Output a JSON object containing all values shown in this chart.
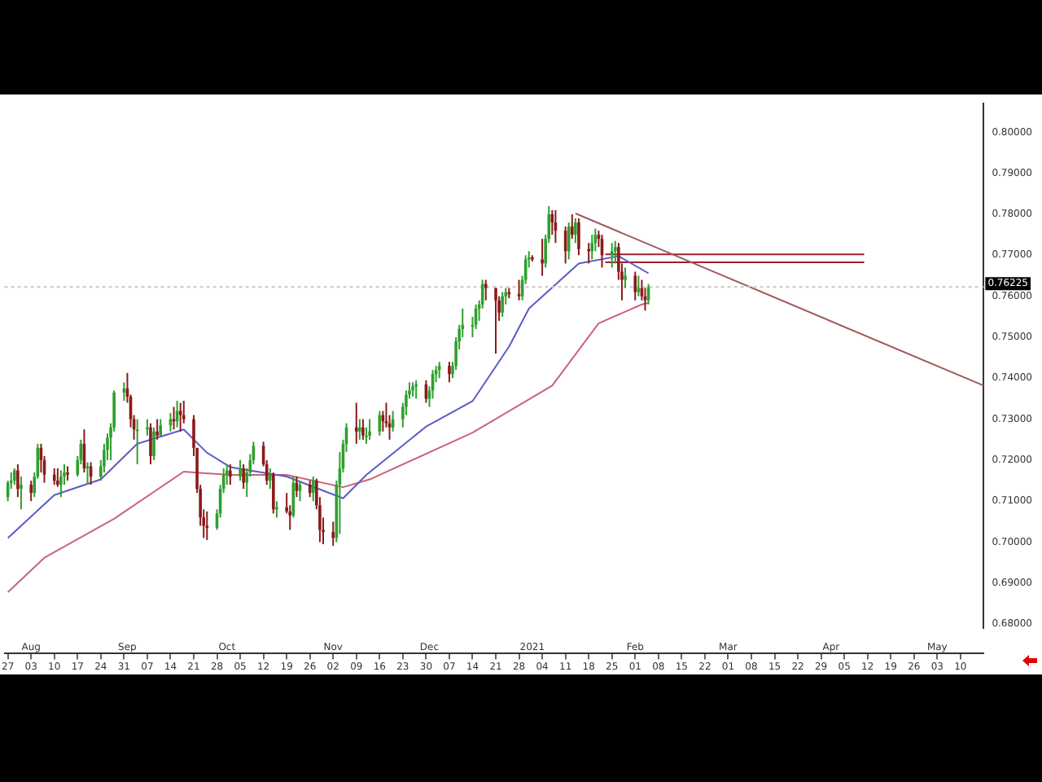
{
  "chart_data": {
    "type": "candlestick",
    "x": [
      "2020-07-27",
      "2020-07-28",
      "2020-07-29",
      "2020-07-30",
      "2020-07-31",
      "2020-08-03",
      "2020-08-04",
      "2020-08-05",
      "2020-08-06",
      "2020-08-07",
      "2020-08-10",
      "2020-08-11",
      "2020-08-12",
      "2020-08-13",
      "2020-08-14",
      "2020-08-17",
      "2020-08-18",
      "2020-08-19",
      "2020-08-20",
      "2020-08-21",
      "2020-08-24",
      "2020-08-25",
      "2020-08-26",
      "2020-08-27",
      "2020-08-28",
      "2020-08-31",
      "2020-09-01",
      "2020-09-02",
      "2020-09-03",
      "2020-09-04",
      "2020-09-07",
      "2020-09-08",
      "2020-09-09",
      "2020-09-10",
      "2020-09-11",
      "2020-09-14",
      "2020-09-15",
      "2020-09-16",
      "2020-09-17",
      "2020-09-18",
      "2020-09-21",
      "2020-09-22",
      "2020-09-23",
      "2020-09-24",
      "2020-09-25",
      "2020-09-28",
      "2020-09-29",
      "2020-09-30",
      "2020-10-01",
      "2020-10-02",
      "2020-10-05",
      "2020-10-06",
      "2020-10-07",
      "2020-10-08",
      "2020-10-09",
      "2020-10-12",
      "2020-10-13",
      "2020-10-14",
      "2020-10-15",
      "2020-10-16",
      "2020-10-19",
      "2020-10-20",
      "2020-10-21",
      "2020-10-22",
      "2020-10-23",
      "2020-10-26",
      "2020-10-27",
      "2020-10-28",
      "2020-10-29",
      "2020-10-30",
      "2020-11-02",
      "2020-11-03",
      "2020-11-04",
      "2020-11-05",
      "2020-11-06",
      "2020-11-09",
      "2020-11-10",
      "2020-11-11",
      "2020-11-12",
      "2020-11-13",
      "2020-11-16",
      "2020-11-17",
      "2020-11-18",
      "2020-11-19",
      "2020-11-20",
      "2020-11-23",
      "2020-11-24",
      "2020-11-25",
      "2020-11-26",
      "2020-11-27",
      "2020-11-30",
      "2020-12-01",
      "2020-12-02",
      "2020-12-03",
      "2020-12-04",
      "2020-12-07",
      "2020-12-08",
      "2020-12-09",
      "2020-12-10",
      "2020-12-11",
      "2020-12-14",
      "2020-12-15",
      "2020-12-16",
      "2020-12-17",
      "2020-12-18",
      "2020-12-21",
      "2020-12-22",
      "2020-12-23",
      "2020-12-24",
      "2020-12-25",
      "2020-12-28",
      "2020-12-29",
      "2020-12-30",
      "2020-12-31",
      "2021-01-01",
      "2021-01-04",
      "2021-01-05",
      "2021-01-06",
      "2021-01-07",
      "2021-01-08",
      "2021-01-11",
      "2021-01-12",
      "2021-01-13",
      "2021-01-14",
      "2021-01-15",
      "2021-01-18",
      "2021-01-19",
      "2021-01-20",
      "2021-01-21",
      "2021-01-22",
      "2021-01-25",
      "2021-01-26",
      "2021-01-27",
      "2021-01-28",
      "2021-01-29",
      "2021-02-01",
      "2021-02-02",
      "2021-02-03",
      "2021-02-04",
      "2021-02-05"
    ],
    "ohlc": [
      [
        0.711,
        0.715,
        0.71,
        0.7145
      ],
      [
        0.7145,
        0.717,
        0.713,
        0.715
      ],
      [
        0.715,
        0.718,
        0.714,
        0.7175
      ],
      [
        0.7175,
        0.719,
        0.711,
        0.713
      ],
      [
        0.713,
        0.716,
        0.708,
        0.714
      ],
      [
        0.714,
        0.715,
        0.71,
        0.712
      ],
      [
        0.712,
        0.717,
        0.711,
        0.716
      ],
      [
        0.716,
        0.724,
        0.7155,
        0.723
      ],
      [
        0.723,
        0.724,
        0.717,
        0.72
      ],
      [
        0.72,
        0.721,
        0.7145,
        0.7165
      ],
      [
        0.7165,
        0.718,
        0.714,
        0.715
      ],
      [
        0.715,
        0.718,
        0.7135,
        0.714
      ],
      [
        0.714,
        0.7175,
        0.711,
        0.716
      ],
      [
        0.716,
        0.719,
        0.714,
        0.717
      ],
      [
        0.717,
        0.7185,
        0.715,
        0.7165
      ],
      [
        0.7165,
        0.721,
        0.716,
        0.72
      ],
      [
        0.72,
        0.725,
        0.719,
        0.724
      ],
      [
        0.724,
        0.7275,
        0.717,
        0.718
      ],
      [
        0.718,
        0.7195,
        0.714,
        0.7185
      ],
      [
        0.7185,
        0.7195,
        0.714,
        0.716
      ],
      [
        0.716,
        0.72,
        0.715,
        0.7185
      ],
      [
        0.7185,
        0.724,
        0.717,
        0.7225
      ],
      [
        0.7225,
        0.7265,
        0.72,
        0.7255
      ],
      [
        0.7255,
        0.729,
        0.72,
        0.728
      ],
      [
        0.728,
        0.737,
        0.727,
        0.7365
      ],
      [
        0.7365,
        0.739,
        0.7345,
        0.7375
      ],
      [
        0.7375,
        0.7413,
        0.734,
        0.7355
      ],
      [
        0.7355,
        0.736,
        0.728,
        0.73
      ],
      [
        0.73,
        0.731,
        0.725,
        0.7275
      ],
      [
        0.7275,
        0.73,
        0.719,
        0.7275
      ],
      [
        0.7275,
        0.73,
        0.726,
        0.728
      ],
      [
        0.728,
        0.729,
        0.719,
        0.721
      ],
      [
        0.721,
        0.728,
        0.72,
        0.727
      ],
      [
        0.727,
        0.73,
        0.725,
        0.726
      ],
      [
        0.726,
        0.73,
        0.726,
        0.7285
      ],
      [
        0.7285,
        0.7315,
        0.727,
        0.73
      ],
      [
        0.73,
        0.733,
        0.7275,
        0.7295
      ],
      [
        0.7295,
        0.7345,
        0.728,
        0.732
      ],
      [
        0.732,
        0.734,
        0.727,
        0.731
      ],
      [
        0.731,
        0.7345,
        0.729,
        0.73
      ],
      [
        0.73,
        0.731,
        0.721,
        0.723
      ],
      [
        0.723,
        0.723,
        0.712,
        0.713
      ],
      [
        0.713,
        0.714,
        0.704,
        0.706
      ],
      [
        0.706,
        0.708,
        0.701,
        0.704
      ],
      [
        0.704,
        0.7075,
        0.7005,
        0.7035
      ],
      [
        0.7035,
        0.708,
        0.703,
        0.707
      ],
      [
        0.707,
        0.714,
        0.706,
        0.713
      ],
      [
        0.713,
        0.718,
        0.712,
        0.7165
      ],
      [
        0.7165,
        0.719,
        0.714,
        0.7175
      ],
      [
        0.7175,
        0.719,
        0.714,
        0.716
      ],
      [
        0.716,
        0.72,
        0.715,
        0.718
      ],
      [
        0.718,
        0.719,
        0.713,
        0.7145
      ],
      [
        0.7145,
        0.718,
        0.711,
        0.717
      ],
      [
        0.717,
        0.7215,
        0.716,
        0.72
      ],
      [
        0.72,
        0.7245,
        0.719,
        0.7235
      ],
      [
        0.7235,
        0.7245,
        0.7185,
        0.719
      ],
      [
        0.719,
        0.72,
        0.714,
        0.715
      ],
      [
        0.715,
        0.718,
        0.713,
        0.7165
      ],
      [
        0.7165,
        0.717,
        0.707,
        0.708
      ],
      [
        0.708,
        0.71,
        0.706,
        0.7085
      ],
      [
        0.7085,
        0.712,
        0.707,
        0.7075
      ],
      [
        0.7075,
        0.709,
        0.703,
        0.7065
      ],
      [
        0.7065,
        0.716,
        0.706,
        0.7145
      ],
      [
        0.7145,
        0.716,
        0.711,
        0.7125
      ],
      [
        0.7125,
        0.715,
        0.71,
        0.714
      ],
      [
        0.714,
        0.715,
        0.711,
        0.712
      ],
      [
        0.712,
        0.716,
        0.71,
        0.715
      ],
      [
        0.715,
        0.7155,
        0.708,
        0.709
      ],
      [
        0.709,
        0.711,
        0.7,
        0.703
      ],
      [
        0.703,
        0.706,
        0.6995,
        0.7025
      ],
      [
        0.7025,
        0.705,
        0.6991,
        0.701
      ],
      [
        0.701,
        0.715,
        0.7,
        0.714
      ],
      [
        0.714,
        0.722,
        0.702,
        0.718
      ],
      [
        0.718,
        0.725,
        0.717,
        0.724
      ],
      [
        0.724,
        0.729,
        0.722,
        0.728
      ],
      [
        0.728,
        0.734,
        0.724,
        0.727
      ],
      [
        0.727,
        0.73,
        0.725,
        0.728
      ],
      [
        0.728,
        0.73,
        0.725,
        0.726
      ],
      [
        0.726,
        0.728,
        0.724,
        0.726
      ],
      [
        0.726,
        0.73,
        0.725,
        0.727
      ],
      [
        0.727,
        0.732,
        0.726,
        0.731
      ],
      [
        0.731,
        0.732,
        0.727,
        0.7295
      ],
      [
        0.7295,
        0.734,
        0.728,
        0.729
      ],
      [
        0.729,
        0.731,
        0.725,
        0.728
      ],
      [
        0.728,
        0.732,
        0.727,
        0.73
      ],
      [
        0.73,
        0.734,
        0.728,
        0.733
      ],
      [
        0.733,
        0.737,
        0.731,
        0.736
      ],
      [
        0.736,
        0.739,
        0.735,
        0.737
      ],
      [
        0.737,
        0.739,
        0.7355,
        0.738
      ],
      [
        0.738,
        0.7395,
        0.735,
        0.7385
      ],
      [
        0.7385,
        0.7395,
        0.734,
        0.735
      ],
      [
        0.735,
        0.738,
        0.733,
        0.737
      ],
      [
        0.737,
        0.742,
        0.735,
        0.741
      ],
      [
        0.741,
        0.743,
        0.739,
        0.742
      ],
      [
        0.742,
        0.744,
        0.74,
        0.743
      ],
      [
        0.743,
        0.744,
        0.739,
        0.741
      ],
      [
        0.741,
        0.744,
        0.74,
        0.743
      ],
      [
        0.743,
        0.75,
        0.742,
        0.749
      ],
      [
        0.749,
        0.753,
        0.747,
        0.752
      ],
      [
        0.752,
        0.757,
        0.75,
        0.753
      ],
      [
        0.753,
        0.755,
        0.75,
        0.753
      ],
      [
        0.753,
        0.758,
        0.752,
        0.757
      ],
      [
        0.757,
        0.759,
        0.754,
        0.758
      ],
      [
        0.758,
        0.764,
        0.757,
        0.763
      ],
      [
        0.763,
        0.764,
        0.759,
        0.762
      ],
      [
        0.762,
        0.762,
        0.746,
        0.759
      ],
      [
        0.759,
        0.76,
        0.754,
        0.756
      ],
      [
        0.756,
        0.761,
        0.755,
        0.76
      ],
      [
        0.76,
        0.762,
        0.758,
        0.761
      ],
      [
        0.761,
        0.762,
        0.7595,
        0.7605
      ],
      [
        0.7605,
        0.764,
        0.759,
        0.76
      ],
      [
        0.76,
        0.765,
        0.759,
        0.764
      ],
      [
        0.764,
        0.77,
        0.763,
        0.769
      ],
      [
        0.769,
        0.771,
        0.767,
        0.7695
      ],
      [
        0.7695,
        0.77,
        0.7685,
        0.769
      ],
      [
        0.769,
        0.774,
        0.765,
        0.768
      ],
      [
        0.768,
        0.775,
        0.767,
        0.774
      ],
      [
        0.774,
        0.782,
        0.773,
        0.78
      ],
      [
        0.78,
        0.781,
        0.775,
        0.778
      ],
      [
        0.778,
        0.781,
        0.773,
        0.776
      ],
      [
        0.776,
        0.777,
        0.768,
        0.771
      ],
      [
        0.771,
        0.778,
        0.769,
        0.777
      ],
      [
        0.777,
        0.78,
        0.774,
        0.775
      ],
      [
        0.775,
        0.779,
        0.773,
        0.778
      ],
      [
        0.778,
        0.779,
        0.77,
        0.7715
      ],
      [
        0.7715,
        0.773,
        0.768,
        0.771
      ],
      [
        0.771,
        0.775,
        0.769,
        0.773
      ],
      [
        0.773,
        0.7765,
        0.771,
        0.775
      ],
      [
        0.775,
        0.776,
        0.772,
        0.774
      ],
      [
        0.774,
        0.775,
        0.767,
        0.77
      ],
      [
        0.77,
        0.773,
        0.767,
        0.771
      ],
      [
        0.771,
        0.7735,
        0.768,
        0.772
      ],
      [
        0.772,
        0.773,
        0.764,
        0.766
      ],
      [
        0.766,
        0.768,
        0.759,
        0.764
      ],
      [
        0.764,
        0.767,
        0.762,
        0.765
      ],
      [
        0.765,
        0.766,
        0.759,
        0.761
      ],
      [
        0.761,
        0.765,
        0.76,
        0.762
      ],
      [
        0.762,
        0.764,
        0.759,
        0.76
      ],
      [
        0.76,
        0.762,
        0.7565,
        0.759
      ],
      [
        0.759,
        0.763,
        0.758,
        0.76225
      ]
    ],
    "colors": [
      "#2ea02e",
      "#2ea02e",
      "#2ea02e",
      "#8b1a1a",
      "#2ea02e",
      "#8b1a1a",
      "#2ea02e",
      "#2ea02e",
      "#8b1a1a",
      "#8b1a1a",
      "#8b1a1a",
      "#8b1a1a",
      "#2ea02e",
      "#2ea02e",
      "#8b1a1a",
      "#2ea02e",
      "#2ea02e",
      "#8b1a1a",
      "#2ea02e",
      "#8b1a1a",
      "#2ea02e",
      "#2ea02e",
      "#2ea02e",
      "#2ea02e",
      "#2ea02e",
      "#2ea02e",
      "#8b1a1a",
      "#8b1a1a",
      "#8b1a1a",
      "#2ea02e",
      "#2ea02e",
      "#8b1a1a",
      "#2ea02e",
      "#8b1a1a",
      "#2ea02e",
      "#2ea02e",
      "#8b1a1a",
      "#2ea02e",
      "#8b1a1a",
      "#8b1a1a",
      "#8b1a1a",
      "#8b1a1a",
      "#8b1a1a",
      "#8b1a1a",
      "#8b1a1a",
      "#2ea02e",
      "#2ea02e",
      "#2ea02e",
      "#2ea02e",
      "#8b1a1a",
      "#2ea02e",
      "#8b1a1a",
      "#2ea02e",
      "#2ea02e",
      "#2ea02e",
      "#8b1a1a",
      "#8b1a1a",
      "#2ea02e",
      "#8b1a1a",
      "#2ea02e",
      "#8b1a1a",
      "#8b1a1a",
      "#2ea02e",
      "#8b1a1a",
      "#2ea02e",
      "#8b1a1a",
      "#2ea02e",
      "#8b1a1a",
      "#8b1a1a",
      "#8b1a1a",
      "#8b1a1a",
      "#2ea02e",
      "#2ea02e",
      "#2ea02e",
      "#2ea02e",
      "#8b1a1a",
      "#2ea02e",
      "#8b1a1a",
      "#2ea02e",
      "#2ea02e",
      "#2ea02e",
      "#8b1a1a",
      "#8b1a1a",
      "#8b1a1a",
      "#2ea02e",
      "#2ea02e",
      "#2ea02e",
      "#2ea02e",
      "#2ea02e",
      "#2ea02e",
      "#8b1a1a",
      "#2ea02e",
      "#2ea02e",
      "#2ea02e",
      "#2ea02e",
      "#8b1a1a",
      "#2ea02e",
      "#2ea02e",
      "#2ea02e",
      "#2ea02e",
      "#2ea02e",
      "#2ea02e",
      "#2ea02e",
      "#2ea02e",
      "#8b1a1a",
      "#8b1a1a",
      "#8b1a1a",
      "#2ea02e",
      "#2ea02e",
      "#8b1a1a",
      "#8b1a1a",
      "#2ea02e",
      "#2ea02e",
      "#2ea02e",
      "#8b1a1a",
      "#8b1a1a",
      "#2ea02e",
      "#2ea02e",
      "#8b1a1a",
      "#8b1a1a",
      "#8b1a1a",
      "#2ea02e",
      "#8b1a1a",
      "#2ea02e",
      "#8b1a1a",
      "#8b1a1a",
      "#2ea02e",
      "#2ea02e",
      "#8b1a1a",
      "#8b1a1a",
      "#2ea02e",
      "#2ea02e",
      "#8b1a1a",
      "#8b1a1a",
      "#2ea02e",
      "#8b1a1a",
      "#2ea02e",
      "#8b1a1a",
      "#8b1a1a",
      "#2ea02e"
    ],
    "series": [
      {
        "type": "line",
        "color": "#5b5bc8",
        "x": [
          "2020-07-27",
          "2020-08-10",
          "2020-08-24",
          "2020-09-04",
          "2020-09-18",
          "2020-09-25",
          "2020-10-02",
          "2020-10-19",
          "2020-11-05",
          "2020-11-12",
          "2020-11-30",
          "2020-12-14",
          "2020-12-25",
          "2020-12-31",
          "2021-01-15",
          "2021-01-27",
          "2021-02-05"
        ],
        "values": [
          0.701,
          0.7115,
          0.7153,
          0.724,
          0.7275,
          0.7218,
          0.7183,
          0.716,
          0.7107,
          0.7164,
          0.7282,
          0.7344,
          0.7477,
          0.757,
          0.768,
          0.7698,
          0.7656
        ]
      },
      {
        "type": "line",
        "color": "#c86478",
        "x": [
          "2020-07-27",
          "2020-08-07",
          "2020-08-28",
          "2020-09-18",
          "2020-10-02",
          "2020-10-19",
          "2020-11-05",
          "2020-11-13",
          "2020-12-14",
          "2021-01-07",
          "2021-01-21",
          "2021-02-03",
          "2021-02-05"
        ],
        "values": [
          0.6878,
          0.6962,
          0.7057,
          0.7172,
          0.7164,
          0.7164,
          0.7134,
          0.7153,
          0.7267,
          0.7382,
          0.7534,
          0.758,
          0.7584
        ]
      },
      {
        "type": "line",
        "color": "#a05a5a",
        "x": [
          "2021-01-14",
          "2021-05-17"
        ],
        "values": [
          0.7802,
          0.7382
        ]
      },
      {
        "type": "line",
        "color": "#a02030",
        "x": [
          "2021-01-23",
          "2021-04-11"
        ],
        "values": [
          0.7702,
          0.7702
        ]
      },
      {
        "type": "line",
        "color": "#a02030",
        "x": [
          "2021-01-23",
          "2021-04-11"
        ],
        "values": [
          0.7683,
          0.7683
        ]
      }
    ],
    "ref_lines": [
      {
        "axis": "y",
        "value": 0.76225,
        "label": "0.76225",
        "color": "#c8c8c8"
      }
    ],
    "xlim": [
      "2020-07-26",
      "2021-05-17"
    ],
    "xticks": [
      {
        "value": "2020-07-27",
        "label": "27"
      },
      {
        "value": "2020-08-03",
        "label": "03"
      },
      {
        "value": "2020-08-10",
        "label": "10"
      },
      {
        "value": "2020-08-17",
        "label": "17"
      },
      {
        "value": "2020-08-24",
        "label": "24"
      },
      {
        "value": "2020-08-31",
        "label": "31"
      },
      {
        "value": "2020-09-07",
        "label": "07"
      },
      {
        "value": "2020-09-14",
        "label": "14"
      },
      {
        "value": "2020-09-21",
        "label": "21"
      },
      {
        "value": "2020-09-28",
        "label": "28"
      },
      {
        "value": "2020-10-05",
        "label": "05"
      },
      {
        "value": "2020-10-12",
        "label": "12"
      },
      {
        "value": "2020-10-19",
        "label": "19"
      },
      {
        "value": "2020-10-26",
        "label": "26"
      },
      {
        "value": "2020-11-02",
        "label": "02"
      },
      {
        "value": "2020-11-09",
        "label": "09"
      },
      {
        "value": "2020-11-16",
        "label": "16"
      },
      {
        "value": "2020-11-23",
        "label": "23"
      },
      {
        "value": "2020-11-30",
        "label": "30"
      },
      {
        "value": "2020-12-07",
        "label": "07"
      },
      {
        "value": "2020-12-14",
        "label": "14"
      },
      {
        "value": "2020-12-21",
        "label": "21"
      },
      {
        "value": "2020-12-28",
        "label": "28"
      },
      {
        "value": "2021-01-04",
        "label": "04"
      },
      {
        "value": "2021-01-11",
        "label": "11"
      },
      {
        "value": "2021-01-18",
        "label": "18"
      },
      {
        "value": "2021-01-25",
        "label": "25"
      },
      {
        "value": "2021-02-01",
        "label": "01"
      },
      {
        "value": "2021-02-08",
        "label": "08"
      },
      {
        "value": "2021-02-15",
        "label": "15"
      },
      {
        "value": "2021-02-22",
        "label": "22"
      },
      {
        "value": "2021-03-01",
        "label": "01"
      },
      {
        "value": "2021-03-08",
        "label": "08"
      },
      {
        "value": "2021-03-15",
        "label": "15"
      },
      {
        "value": "2021-03-22",
        "label": "22"
      },
      {
        "value": "2021-03-29",
        "label": "29"
      },
      {
        "value": "2021-04-05",
        "label": "05"
      },
      {
        "value": "2021-04-12",
        "label": "12"
      },
      {
        "value": "2021-04-19",
        "label": "19"
      },
      {
        "value": "2021-04-26",
        "label": "26"
      },
      {
        "value": "2021-05-03",
        "label": "03"
      },
      {
        "value": "2021-05-10",
        "label": "10"
      }
    ],
    "x2lim": [
      "2020-07-26",
      "2021-05-17"
    ],
    "x2ticks": [
      {
        "value": "2020-08-03",
        "label": "Aug"
      },
      {
        "value": "2020-09-01",
        "label": "Sep"
      },
      {
        "value": "2020-10-01",
        "label": "Oct"
      },
      {
        "value": "2020-11-02",
        "label": "Nov"
      },
      {
        "value": "2020-12-01",
        "label": "Dec"
      },
      {
        "value": "2021-01-01",
        "label": "2021"
      },
      {
        "value": "2021-02-01",
        "label": "Feb"
      },
      {
        "value": "2021-03-01",
        "label": "Mar"
      },
      {
        "value": "2021-04-01",
        "label": "Apr"
      },
      {
        "value": "2021-05-03",
        "label": "May"
      }
    ],
    "ylim": [
      0.679,
      0.807
    ],
    "yticks": [
      {
        "value": 0.68,
        "label": "0.68000"
      },
      {
        "value": 0.69,
        "label": "0.69000"
      },
      {
        "value": 0.7,
        "label": "0.70000"
      },
      {
        "value": 0.71,
        "label": "0.71000"
      },
      {
        "value": 0.72,
        "label": "0.72000"
      },
      {
        "value": 0.73,
        "label": "0.73000"
      },
      {
        "value": 0.74,
        "label": "0.74000"
      },
      {
        "value": 0.75,
        "label": "0.75000"
      },
      {
        "value": 0.76,
        "label": "0.76000"
      },
      {
        "value": 0.77,
        "label": "0.77000"
      },
      {
        "value": 0.78,
        "label": "0.78000"
      },
      {
        "value": 0.79,
        "label": "0.79000"
      },
      {
        "value": 0.8,
        "label": "0.80000"
      }
    ]
  }
}
